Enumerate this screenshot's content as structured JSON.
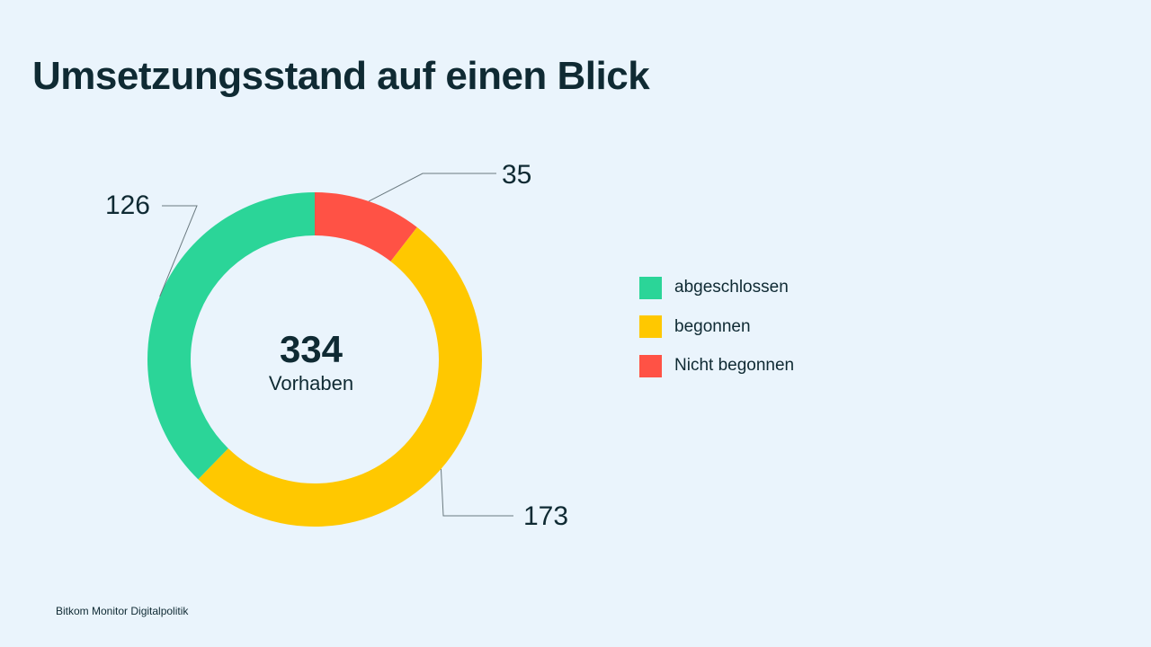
{
  "title": "Umsetzungsstand auf einen Blick",
  "source": "Bitkom Monitor Digitalpolitik",
  "chart_data": {
    "type": "donut",
    "title": "Umsetzungsstand auf einen Blick",
    "total": {
      "value": "334",
      "label": "Vorhaben"
    },
    "legend_position": "right",
    "slices": [
      {
        "name": "Nicht begonnen",
        "value": 35,
        "color": "#ff5245"
      },
      {
        "name": "begonnen",
        "value": 173,
        "color": "#ffc800"
      },
      {
        "name": "abgeschlossen",
        "value": 126,
        "color": "#2bd598"
      }
    ]
  },
  "legend": [
    {
      "label": "abgeschlossen",
      "color": "#2bd598"
    },
    {
      "label": "begonnen",
      "color": "#ffc800"
    },
    {
      "label": "Nicht begonnen",
      "color": "#ff5245"
    }
  ]
}
